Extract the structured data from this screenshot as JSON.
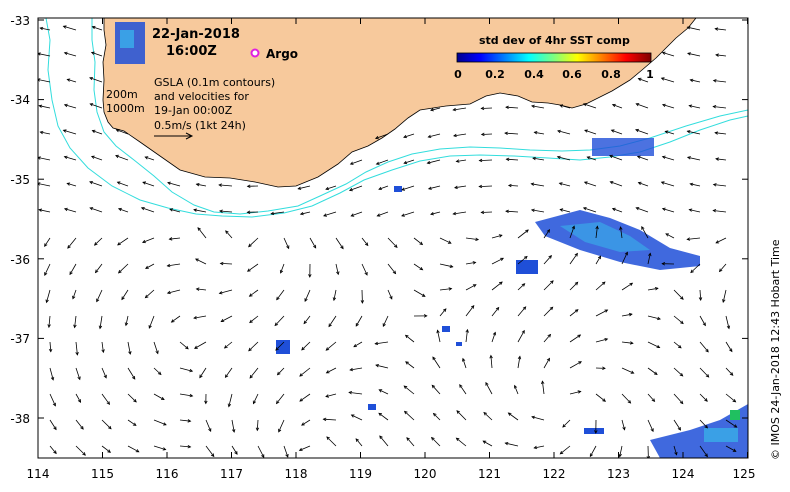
{
  "title": {
    "date": "22-Jan-2018",
    "time": "16:00Z"
  },
  "argo_label": "Argo",
  "info": {
    "line1": "GSLA (0.1m contours)",
    "line2": "and velocities for",
    "line3": "19-Jan 00:00Z",
    "line4": "0.5m/s (1kt 24h)"
  },
  "depth_labels": {
    "d200": "200m",
    "d1000": "1000m"
  },
  "colorbar": {
    "title": "std dev of 4hr SST comp",
    "ticks": [
      "0",
      "0.2",
      "0.4",
      "0.6",
      "0.8",
      "1"
    ]
  },
  "axes": {
    "x_ticks": [
      "114",
      "115",
      "116",
      "117",
      "118",
      "119",
      "120",
      "121",
      "122",
      "123",
      "124",
      "125"
    ],
    "y_ticks": [
      "-33",
      "-34",
      "-35",
      "-36",
      "-37",
      "-38"
    ]
  },
  "copyright": "© IMOS 24-Jan-2018 12:43 Hobart Time",
  "colors": {
    "land": "#f7c99c",
    "isobath": "#33dddd",
    "argo_marker": "#e020e0"
  }
}
